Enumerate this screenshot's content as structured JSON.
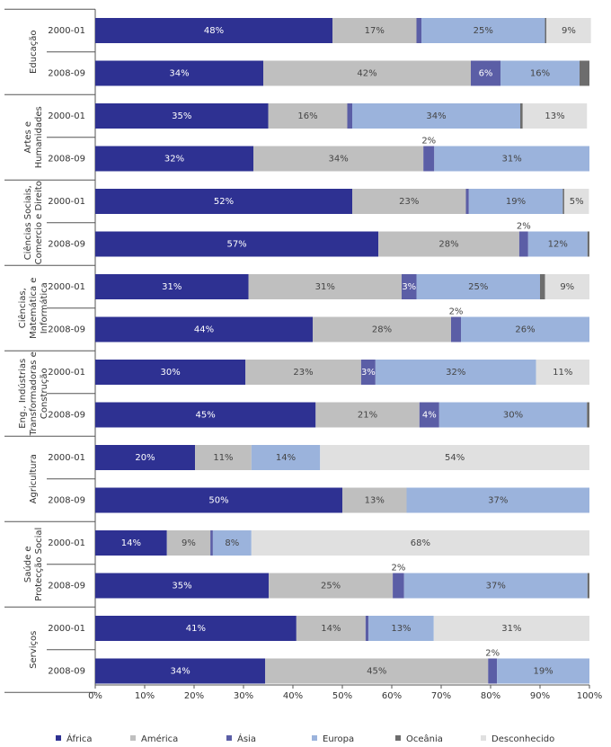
{
  "chart_data": {
    "type": "stacked-bar-horizontal",
    "groups": [
      [
        "Educação"
      ],
      [
        "Artes e",
        "Humanidades"
      ],
      [
        "Ciências Sociais,",
        "Comercio e Direito"
      ],
      [
        "Ciências,",
        "Matemática e",
        "Informática"
      ],
      [
        "Eng., Indústrias",
        "Transformadoras e",
        "Construção"
      ],
      [
        "Agricultura"
      ],
      [
        "Saúde e",
        "Protecção Social"
      ],
      [
        "Serviços"
      ]
    ],
    "categories": [
      "2000-01",
      "2008-09",
      "2000-01",
      "2008-09",
      "2000-01",
      "2008-09",
      "2000-01",
      "2008-09",
      "2000-01",
      "2008-09",
      "2000-01",
      "2008-09",
      "2000-01",
      "2008-09",
      "2000-01",
      "2008-09"
    ],
    "series": [
      {
        "name": "África",
        "color": "#2e3192",
        "values": [
          48,
          34,
          35,
          32,
          52,
          57.3,
          31,
          44,
          30.4,
          44.6,
          20.2,
          50,
          14.5,
          35.1,
          40.7,
          34.4
        ],
        "value_labels": [
          "48%",
          "34%",
          "35%",
          "32%",
          "52%",
          "57%",
          "31%",
          "44%",
          "30%",
          "45%",
          "20%",
          "50%",
          "14%",
          "35%",
          "41%",
          "34%"
        ]
      },
      {
        "name": "América",
        "color": "#bfbfbf",
        "values": [
          17,
          42,
          16,
          34.4,
          23,
          28.5,
          31,
          28,
          23.4,
          21,
          11.4,
          13,
          8.8,
          25.1,
          14,
          45.1
        ],
        "value_labels": [
          "17%",
          "42%",
          "16%",
          "34%",
          "23%",
          "28%",
          "31%",
          "28%",
          "23%",
          "21%",
          "11%",
          "13%",
          "9%",
          "25%",
          "14%",
          "45%"
        ]
      },
      {
        "name": "Ásia",
        "color": "#5b5ea6",
        "values": [
          1,
          6,
          1,
          2.2,
          0.6,
          1.8,
          3,
          2,
          2.9,
          4,
          0,
          0,
          0.5,
          2.3,
          0.6,
          1.8
        ],
        "value_labels": [
          null,
          "6%",
          null,
          "2%",
          null,
          "2%",
          "3%",
          "2%",
          "3%",
          "4%",
          null,
          null,
          null,
          "2%",
          null,
          "2%"
        ]
      },
      {
        "name": "Europa",
        "color": "#9bb3dc",
        "values": [
          25,
          16,
          34,
          31.4,
          19,
          12,
          25,
          26,
          32.5,
          29.9,
          13.9,
          37,
          7.8,
          37.1,
          13.2,
          18.7
        ],
        "value_labels": [
          "25%",
          "16%",
          "34%",
          "31%",
          "19%",
          "12%",
          "25%",
          "26%",
          "32%",
          "30%",
          "14%",
          "37%",
          "8%",
          "37%",
          "13%",
          "19%"
        ]
      },
      {
        "name": "Oceânia",
        "color": "#6d6d6d",
        "values": [
          0.3,
          2,
          0.5,
          0,
          0.3,
          0.4,
          1,
          0,
          0,
          0.5,
          0,
          0,
          0,
          0.4,
          0,
          0
        ],
        "value_labels": [
          null,
          null,
          null,
          null,
          null,
          null,
          null,
          null,
          null,
          null,
          null,
          null,
          null,
          null,
          null,
          null
        ]
      },
      {
        "name": "Desconhecido",
        "color": "#e0e0e0",
        "values": [
          9,
          0,
          13,
          0,
          5,
          0,
          9,
          0,
          10.8,
          0,
          54.5,
          0,
          68.4,
          0,
          31.5,
          0
        ],
        "value_labels": [
          "9%",
          null,
          "13%",
          null,
          "5%",
          null,
          "9%",
          null,
          "11%",
          null,
          "54%",
          null,
          "68%",
          null,
          "31%",
          null
        ]
      }
    ],
    "xlim": [
      0,
      100
    ],
    "xticks": [
      {
        "value": 0,
        "label": "0%"
      },
      {
        "value": 10,
        "label": "10%"
      },
      {
        "value": 20,
        "label": "20%"
      },
      {
        "value": 30,
        "label": "30%"
      },
      {
        "value": 40,
        "label": "40%"
      },
      {
        "value": 50,
        "label": "50%"
      },
      {
        "value": 60,
        "label": "60%"
      },
      {
        "value": 70,
        "label": "70%"
      },
      {
        "value": 80,
        "label": "80%"
      },
      {
        "value": 90,
        "label": "90%"
      },
      {
        "value": 100,
        "label": "100%"
      }
    ],
    "legend": "bottom"
  }
}
